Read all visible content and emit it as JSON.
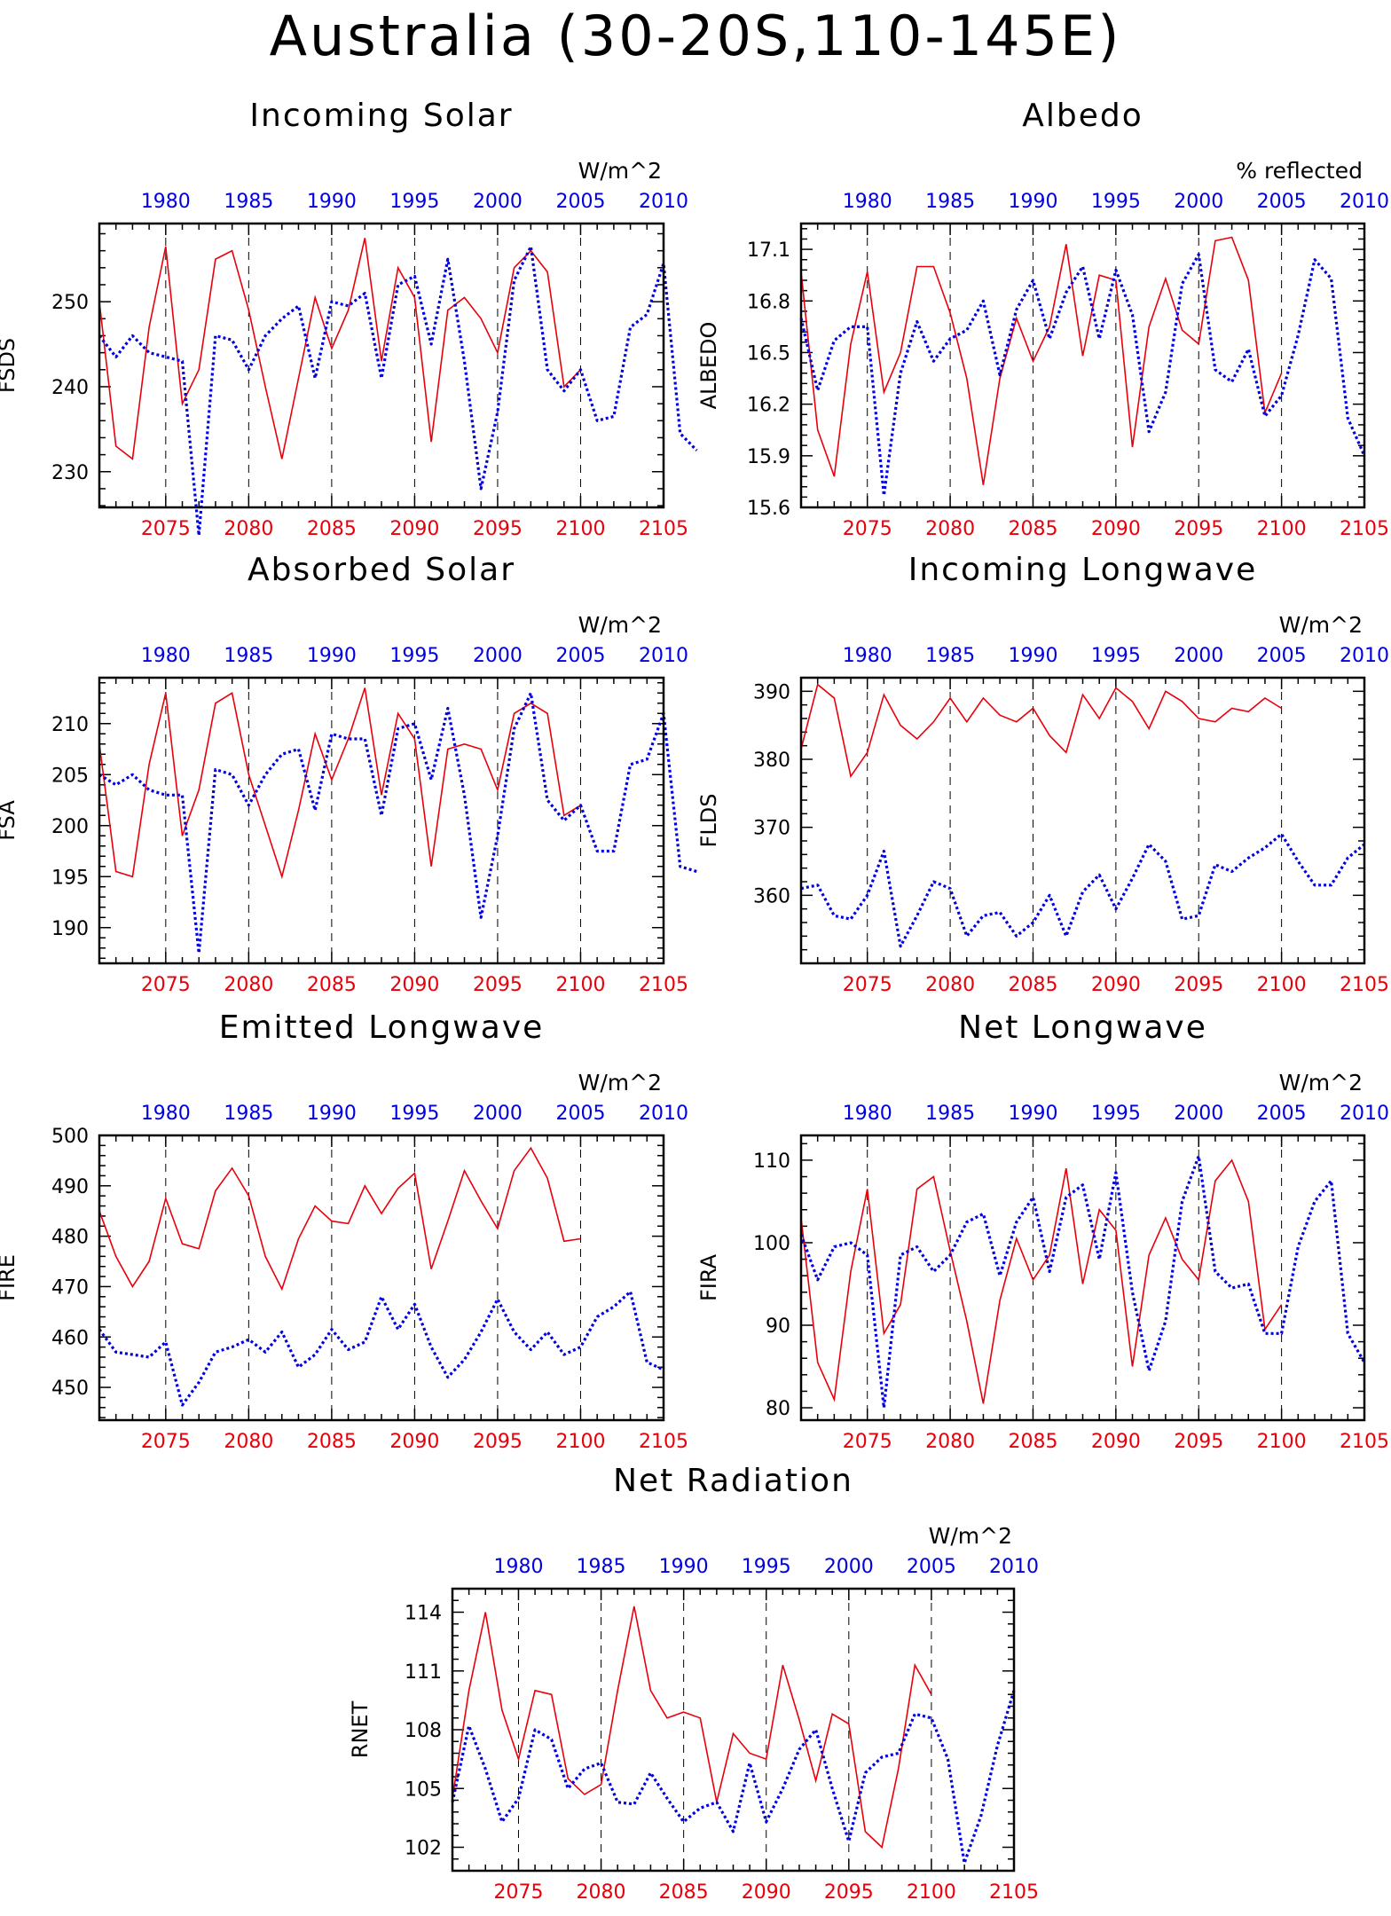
{
  "figure": {
    "title": "Australia (30-20S,110-145E)"
  },
  "colors": {
    "series_future": "#e8000b",
    "series_past": "#0000e0",
    "axis": "#000000"
  },
  "chart_data": [
    {
      "type": "line",
      "title": "Incoming Solar",
      "units": "W/m^2",
      "ylabel": "FSDS",
      "xlim_bottom": [
        2071,
        2105
      ],
      "xlim_top": [
        1976,
        2010
      ],
      "x_ticks_bottom": [
        2075,
        2080,
        2085,
        2090,
        2095,
        2100,
        2105
      ],
      "x_ticks_top": [
        1980,
        1985,
        1990,
        1995,
        2000,
        2005,
        2010
      ],
      "ylim": [
        225.8,
        259.2
      ],
      "yticks": [
        230,
        240,
        250
      ],
      "series": [
        {
          "axis": "bottom",
          "x_start": 2071,
          "values": [
            250,
            233,
            231.5,
            247,
            256.5,
            238,
            242,
            255,
            256,
            249,
            240,
            231.5,
            241,
            250.5,
            244.5,
            249,
            257.5,
            243,
            254,
            250.5,
            233.5,
            249,
            250.5,
            248,
            244,
            254,
            256,
            253.5,
            240,
            242
          ]
        },
        {
          "axis": "top",
          "x_start": 1976,
          "values": [
            246,
            243.5,
            246,
            244,
            243.5,
            243,
            222.5,
            246,
            245.5,
            242,
            246,
            248,
            249.5,
            241,
            250,
            249.5,
            251,
            241,
            252,
            253,
            245,
            255,
            243,
            228,
            237,
            252.5,
            256.5,
            242,
            239.5,
            242,
            236,
            236.5,
            247,
            248.5,
            254.5,
            234.5,
            232.5
          ]
        }
      ]
    },
    {
      "type": "line",
      "title": "Albedo",
      "units": "% reflected",
      "ylabel": "ALBEDO",
      "xlim_bottom": [
        2071,
        2105
      ],
      "xlim_top": [
        1976,
        2010
      ],
      "x_ticks_bottom": [
        2075,
        2080,
        2085,
        2090,
        2095,
        2100,
        2105
      ],
      "x_ticks_top": [
        1980,
        1985,
        1990,
        1995,
        2000,
        2005,
        2010
      ],
      "ylim": [
        15.6,
        17.25
      ],
      "yticks": [
        15.6,
        15.9,
        16.2,
        16.5,
        16.8,
        17.1
      ],
      "series": [
        {
          "axis": "bottom",
          "x_start": 2071,
          "values": [
            16.97,
            16.05,
            15.78,
            16.55,
            16.97,
            16.27,
            16.5,
            17.0,
            17.0,
            16.73,
            16.35,
            15.73,
            16.35,
            16.7,
            16.45,
            16.65,
            17.13,
            16.48,
            16.95,
            16.92,
            15.95,
            16.65,
            16.93,
            16.63,
            16.55,
            17.15,
            17.17,
            16.92,
            16.15,
            16.38
          ]
        },
        {
          "axis": "top",
          "x_start": 1976,
          "values": [
            16.7,
            16.28,
            16.57,
            16.65,
            16.65,
            15.67,
            16.38,
            16.68,
            16.45,
            16.58,
            16.63,
            16.8,
            16.37,
            16.75,
            16.92,
            16.58,
            16.85,
            17.0,
            16.58,
            16.98,
            16.72,
            16.04,
            16.27,
            16.9,
            17.07,
            16.4,
            16.33,
            16.52,
            16.13,
            16.25,
            16.6,
            17.04,
            16.93,
            16.12,
            15.9
          ]
        }
      ]
    },
    {
      "type": "line",
      "title": "Absorbed Solar",
      "units": "W/m^2",
      "ylabel": "FSA",
      "xlim_bottom": [
        2071,
        2105
      ],
      "xlim_top": [
        1976,
        2010
      ],
      "x_ticks_bottom": [
        2075,
        2080,
        2085,
        2090,
        2095,
        2100,
        2105
      ],
      "x_ticks_top": [
        1980,
        1985,
        1990,
        1995,
        2000,
        2005,
        2010
      ],
      "ylim": [
        186.5,
        214.5
      ],
      "yticks": [
        190,
        195,
        200,
        205,
        210
      ],
      "series": [
        {
          "axis": "bottom",
          "x_start": 2071,
          "values": [
            208,
            195.5,
            195,
            206,
            213,
            199,
            203.5,
            212,
            213,
            205,
            200,
            195,
            201.5,
            209,
            204.5,
            208.5,
            213.5,
            203,
            211,
            208.5,
            196,
            207.5,
            208,
            207.5,
            203.5,
            211,
            212,
            211,
            201,
            202
          ]
        },
        {
          "axis": "top",
          "x_start": 1976,
          "values": [
            205,
            204,
            205,
            203.5,
            203,
            203,
            187.5,
            205.5,
            205,
            202,
            205,
            207,
            207.5,
            201.5,
            209,
            208.5,
            208.5,
            201,
            209.5,
            210,
            204.5,
            211.5,
            203,
            191,
            199,
            209.5,
            213,
            202.5,
            200.5,
            202,
            197.5,
            197.5,
            206,
            206.5,
            211,
            196,
            195.5
          ]
        }
      ]
    },
    {
      "type": "line",
      "title": "Incoming Longwave",
      "units": "W/m^2",
      "ylabel": "FLDS",
      "xlim_bottom": [
        2071,
        2105
      ],
      "xlim_top": [
        1976,
        2010
      ],
      "x_ticks_bottom": [
        2075,
        2080,
        2085,
        2090,
        2095,
        2100,
        2105
      ],
      "x_ticks_top": [
        1980,
        1985,
        1990,
        1995,
        2000,
        2005,
        2010
      ],
      "ylim": [
        350,
        392
      ],
      "yticks": [
        360,
        370,
        380,
        390
      ],
      "series": [
        {
          "axis": "bottom",
          "x_start": 2071,
          "values": [
            381.5,
            391,
            389,
            377.5,
            381,
            389.5,
            385,
            383,
            385.5,
            389,
            385.5,
            389,
            386.5,
            385.5,
            387.5,
            383.5,
            381,
            389.5,
            386,
            390.5,
            388.5,
            384.5,
            390,
            388.5,
            386,
            385.5,
            387.5,
            387,
            389,
            387.5
          ]
        },
        {
          "axis": "top",
          "x_start": 1976,
          "values": [
            361,
            361.5,
            357,
            356.5,
            360,
            366.5,
            352.5,
            357,
            362,
            361,
            354,
            357,
            357.5,
            354,
            356,
            360,
            354,
            360.5,
            363,
            358,
            362.5,
            367.5,
            365,
            356.5,
            357,
            364.5,
            363.5,
            365.5,
            367,
            369,
            365,
            361.5,
            361.5,
            365.5,
            367.5
          ]
        }
      ]
    },
    {
      "type": "line",
      "title": "Emitted Longwave",
      "units": "W/m^2",
      "ylabel": "FIRE",
      "xlim_bottom": [
        2071,
        2105
      ],
      "xlim_top": [
        1976,
        2010
      ],
      "x_ticks_bottom": [
        2075,
        2080,
        2085,
        2090,
        2095,
        2100,
        2105
      ],
      "x_ticks_top": [
        1980,
        1985,
        1990,
        1995,
        2000,
        2005,
        2010
      ],
      "ylim": [
        443.5,
        500
      ],
      "yticks": [
        450,
        460,
        470,
        480,
        490,
        500
      ],
      "series": [
        {
          "axis": "bottom",
          "x_start": 2071,
          "values": [
            485,
            476,
            470,
            475,
            487.5,
            478.5,
            477.5,
            489,
            493.5,
            488,
            476,
            469.5,
            479.5,
            486,
            483,
            482.5,
            490,
            484.5,
            489.5,
            492.5,
            473.5,
            483,
            493,
            487,
            481.5,
            493,
            497.5,
            491.5,
            479,
            479.5
          ]
        },
        {
          "axis": "top",
          "x_start": 1976,
          "values": [
            461.5,
            457,
            456.5,
            456,
            459,
            446.5,
            451,
            457,
            458,
            459.5,
            457,
            461,
            454,
            456.5,
            461.5,
            457.5,
            459,
            468,
            461.5,
            466.5,
            458,
            452,
            455.5,
            461,
            467.5,
            461,
            457.5,
            461,
            456.5,
            458,
            464,
            466,
            469,
            455,
            453.5
          ]
        }
      ]
    },
    {
      "type": "line",
      "title": "Net Longwave",
      "units": "W/m^2",
      "ylabel": "FIRA",
      "xlim_bottom": [
        2071,
        2105
      ],
      "xlim_top": [
        1976,
        2010
      ],
      "x_ticks_bottom": [
        2075,
        2080,
        2085,
        2090,
        2095,
        2100,
        2105
      ],
      "x_ticks_top": [
        1980,
        1985,
        1990,
        1995,
        2000,
        2005,
        2010
      ],
      "ylim": [
        78.5,
        113
      ],
      "yticks": [
        80,
        90,
        100,
        110
      ],
      "series": [
        {
          "axis": "bottom",
          "x_start": 2071,
          "values": [
            103,
            85.5,
            81,
            96.5,
            106.5,
            89,
            92.5,
            106.5,
            108,
            99,
            90.5,
            80.5,
            93,
            100.5,
            95.5,
            98.5,
            109,
            95,
            104,
            101.5,
            85,
            98.5,
            103,
            98,
            95.5,
            107.5,
            110,
            105,
            89.5,
            92.5
          ]
        },
        {
          "axis": "top",
          "x_start": 1976,
          "values": [
            101,
            95.5,
            99.5,
            100,
            98.5,
            80,
            98.5,
            99.5,
            96.5,
            98.5,
            102.5,
            103.5,
            96,
            102.5,
            105.5,
            96.5,
            105.5,
            107,
            98,
            108.5,
            94,
            84.5,
            90.5,
            105,
            110.5,
            96.5,
            94.5,
            95,
            89,
            89,
            99.5,
            105,
            107.5,
            89,
            85.5
          ]
        }
      ]
    },
    {
      "type": "line",
      "title": "Net Radiation",
      "units": "W/m^2",
      "ylabel": "RNET",
      "xlim_bottom": [
        2071,
        2105
      ],
      "xlim_top": [
        1976,
        2010
      ],
      "x_ticks_bottom": [
        2075,
        2080,
        2085,
        2090,
        2095,
        2100,
        2105
      ],
      "x_ticks_top": [
        1980,
        1985,
        1990,
        1995,
        2000,
        2005,
        2010
      ],
      "ylim": [
        100.8,
        115.2
      ],
      "yticks": [
        102,
        105,
        108,
        111,
        114
      ],
      "series": [
        {
          "axis": "bottom",
          "x_start": 2071,
          "values": [
            104.5,
            110,
            114,
            109,
            106.5,
            110,
            109.8,
            105.5,
            104.7,
            105.2,
            110,
            114.3,
            110,
            108.6,
            108.9,
            108.6,
            104.3,
            107.8,
            106.8,
            106.5,
            111.3,
            108.5,
            105.4,
            108.8,
            108.3,
            102.8,
            102,
            106,
            111.3,
            109.8
          ]
        },
        {
          "axis": "top",
          "x_start": 1976,
          "values": [
            104.3,
            108.2,
            106,
            103.3,
            104.5,
            108,
            107.5,
            105,
            106,
            106.3,
            104.3,
            104.2,
            105.8,
            104.5,
            103.3,
            104,
            104.3,
            102.8,
            106.3,
            103.3,
            105,
            107,
            108,
            105,
            102.3,
            105.8,
            106.6,
            106.8,
            108.8,
            108.6,
            106.5,
            101.2,
            103.6,
            107.2,
            110
          ]
        }
      ]
    }
  ]
}
